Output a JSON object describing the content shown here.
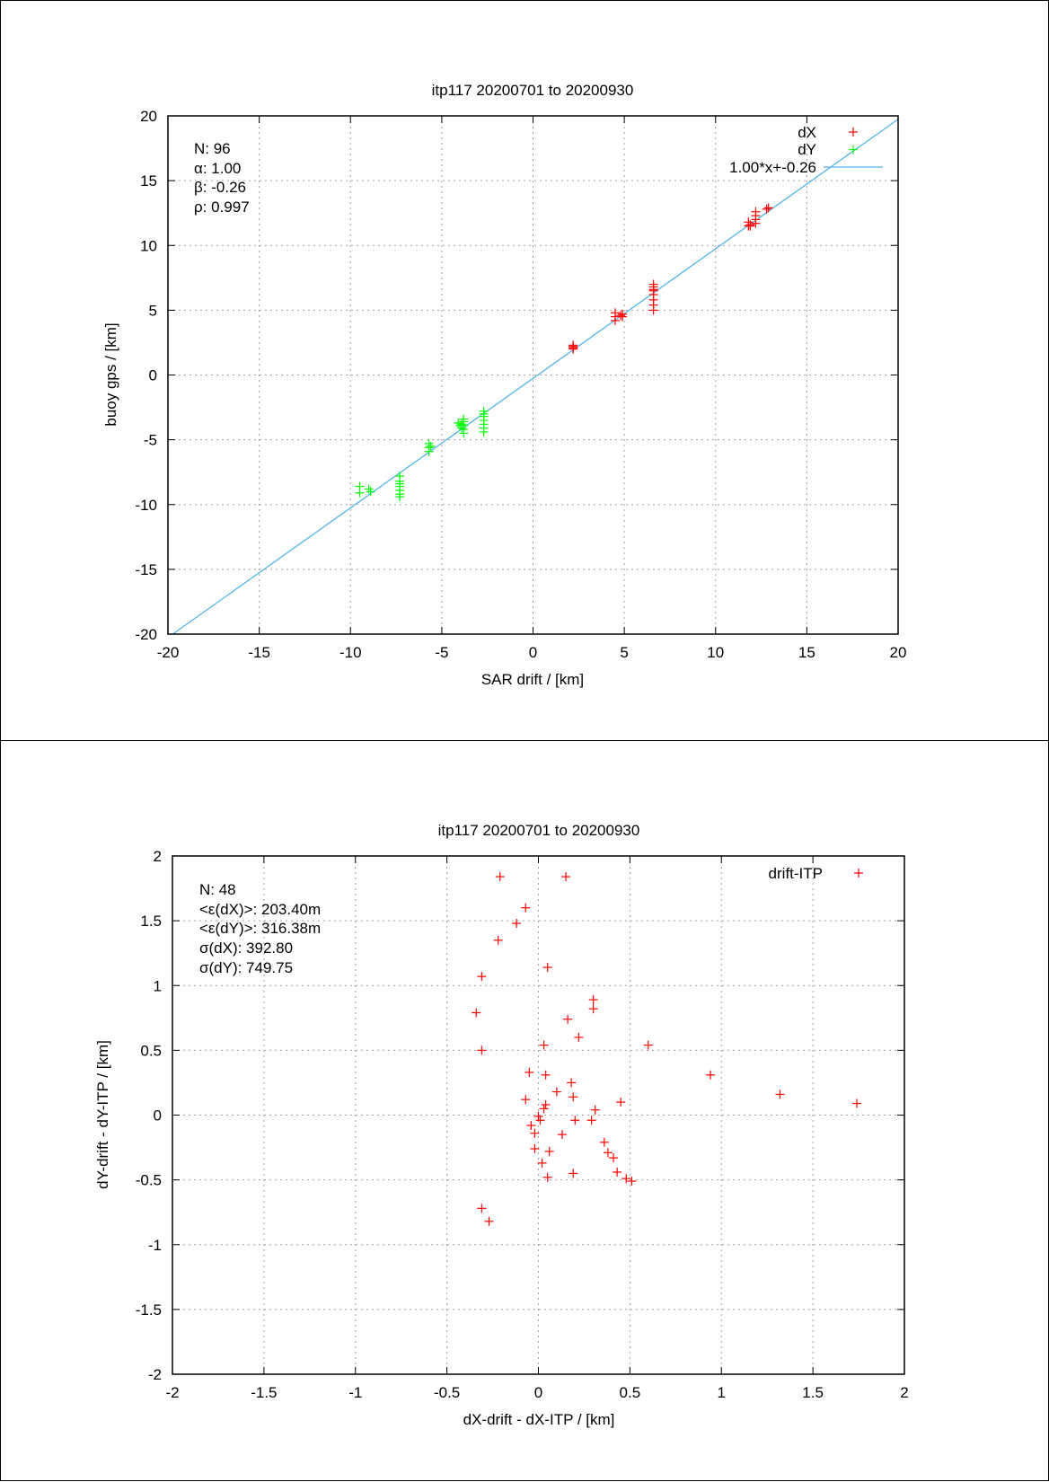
{
  "chart_data": [
    {
      "type": "scatter",
      "title": "itp117 20200701 to 20200930",
      "xlabel": "SAR drift / [km]",
      "ylabel": "buoy gps / [km]",
      "xlim": [
        -20,
        20
      ],
      "ylim": [
        -20,
        20
      ],
      "xticks": [
        -20,
        -15,
        -10,
        -5,
        0,
        5,
        10,
        15,
        20
      ],
      "yticks": [
        -20,
        -15,
        -10,
        -5,
        0,
        5,
        10,
        15,
        20
      ],
      "xtick_labels": [
        "-20",
        "-15",
        "-10",
        "-5",
        "0",
        "5",
        "10",
        "15",
        "20"
      ],
      "ytick_labels": [
        "-20",
        "-15",
        "-10",
        "-5",
        "0",
        "5",
        "10",
        "15",
        "20"
      ],
      "grid": true,
      "legend_position": "top-right",
      "stats": [
        "N: 96",
        "α: 1.00",
        "β: -0.26",
        "ρ: 0.997"
      ],
      "series": [
        {
          "name": "dX",
          "color": "#ff0000",
          "marker": "plus",
          "x": [
            2.2,
            2.2,
            2.2,
            2.2,
            4.5,
            4.5,
            4.5,
            4.8,
            4.9,
            4.9,
            6.6,
            6.6,
            6.6,
            6.6,
            6.6,
            6.6,
            6.6,
            6.6,
            11.8,
            11.8,
            11.9,
            11.9,
            12.2,
            12.2,
            12.2,
            12.2,
            12.8,
            12.9
          ],
          "y": [
            2.0,
            2.1,
            2.2,
            2.3,
            4.2,
            4.5,
            4.8,
            4.6,
            4.5,
            4.7,
            5.0,
            5.4,
            5.8,
            6.2,
            6.5,
            6.8,
            7.0,
            6.6,
            11.5,
            11.8,
            11.5,
            11.6,
            11.7,
            12.0,
            12.3,
            12.6,
            12.8,
            12.9
          ]
        },
        {
          "name": "dY",
          "color": "#00ff00",
          "marker": "plus",
          "x": [
            -9.5,
            -9.5,
            -9.0,
            -8.9,
            -7.3,
            -7.3,
            -7.3,
            -7.3,
            -7.3,
            -7.3,
            -7.3,
            -5.7,
            -5.7,
            -5.7,
            -5.6,
            -4.1,
            -4.0,
            -3.9,
            -3.8,
            -3.8,
            -3.8,
            -3.8,
            -3.8,
            -3.9,
            -2.7,
            -2.7,
            -2.7,
            -2.7,
            -2.7,
            -2.7,
            -2.7
          ],
          "y": [
            -8.6,
            -9.1,
            -8.8,
            -9.0,
            -7.8,
            -8.2,
            -8.6,
            -8.9,
            -9.2,
            -9.4,
            -8.4,
            -5.3,
            -5.6,
            -5.9,
            -5.5,
            -3.7,
            -3.9,
            -4.1,
            -3.4,
            -3.6,
            -3.9,
            -4.2,
            -4.5,
            -3.8,
            -2.8,
            -3.2,
            -3.5,
            -3.8,
            -4.1,
            -4.4,
            -3.0
          ]
        }
      ],
      "fit": {
        "name": "1.00*x+-0.26",
        "slope": 1.0,
        "intercept": -0.26,
        "color": "#56b4e9"
      }
    },
    {
      "type": "scatter",
      "title": "itp117 20200701 to 20200930",
      "xlabel": "dX-drift - dX-ITP / [km]",
      "ylabel": "dY-drift - dY-ITP / [km]",
      "xlim": [
        -2,
        2
      ],
      "ylim": [
        -2,
        2
      ],
      "xticks": [
        -2,
        -1.5,
        -1,
        -0.5,
        0,
        0.5,
        1,
        1.5,
        2
      ],
      "yticks": [
        -2,
        -1.5,
        -1,
        -0.5,
        0,
        0.5,
        1,
        1.5,
        2
      ],
      "xtick_labels": [
        "-2",
        "-1.5",
        "-1",
        "-0.5",
        "0",
        "0.5",
        "1",
        "1.5",
        "2"
      ],
      "ytick_labels": [
        "-2",
        "-1.5",
        "-1",
        "-0.5",
        "0",
        "0.5",
        "1",
        "1.5",
        "2"
      ],
      "grid": true,
      "legend_position": "top-right",
      "stats": [
        "N: 48",
        "<ε(dX)>:  203.40m",
        "<ε(dY)>: 316.38m",
        "σ(dX):  392.80",
        "σ(dY):  749.75"
      ],
      "series": [
        {
          "name": "drift-ITP",
          "color": "#ff0000",
          "marker": "plus",
          "x": [
            -0.21,
            0.15,
            -0.07,
            -0.12,
            -0.22,
            0.05,
            -0.31,
            -0.34,
            0.16,
            0.3,
            0.3,
            -0.31,
            0.03,
            0.6,
            -0.05,
            0.04,
            0.94,
            0.18,
            0.1,
            0.19,
            -0.07,
            0.04,
            1.32,
            1.74,
            0.45,
            0.31,
            0.01,
            0.2,
            0.29,
            -0.04,
            -0.02,
            0.13,
            0.36,
            -0.02,
            0.06,
            0.38,
            0.41,
            0.02,
            0.19,
            0.43,
            0.05,
            0.48,
            0.51,
            -0.31,
            -0.27,
            0.0,
            0.03,
            0.22
          ],
          "y": [
            1.84,
            1.84,
            1.6,
            1.48,
            1.35,
            1.14,
            1.07,
            0.79,
            0.74,
            0.89,
            0.82,
            0.5,
            0.54,
            0.54,
            0.33,
            0.31,
            0.31,
            0.25,
            0.18,
            0.14,
            0.12,
            0.08,
            0.16,
            0.09,
            0.1,
            0.04,
            -0.04,
            -0.04,
            -0.04,
            -0.08,
            -0.14,
            -0.15,
            -0.21,
            -0.26,
            -0.28,
            -0.29,
            -0.33,
            -0.37,
            -0.45,
            -0.44,
            -0.48,
            -0.49,
            -0.51,
            -0.72,
            -0.82,
            -0.01,
            0.05,
            0.6
          ]
        }
      ]
    }
  ]
}
